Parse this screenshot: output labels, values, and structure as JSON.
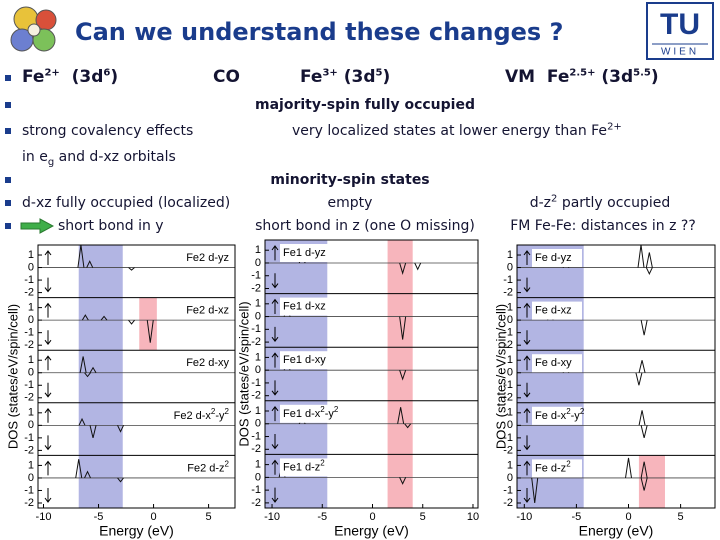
{
  "header": {
    "title": "Can we understand these changes ?",
    "logo": {
      "top": "TU",
      "bottom": "WIEN"
    }
  },
  "rows": [
    [
      [
        "Fe",
        {
          "sup": "2+"
        },
        "  (3d",
        {
          "sup": "6"
        },
        ")"
      ],
      [
        "CO"
      ],
      [
        "Fe",
        {
          "sup": "3+"
        },
        " (3d",
        {
          "sup": "5"
        },
        ")"
      ],
      [
        "VM  Fe",
        {
          "sup": "2.5+"
        },
        " (3d",
        {
          "sup": "5.5"
        },
        ")"
      ]
    ],
    [
      [
        "majority-spin fully occupied"
      ]
    ],
    [
      [
        "strong covalency effects"
      ],
      [
        "very localized states at lower energy than Fe",
        {
          "sup": "2+"
        }
      ]
    ],
    [
      [
        "in e",
        {
          "sub": "g"
        },
        " and d-xz orbitals"
      ]
    ],
    [
      [
        "minority-spin states"
      ]
    ],
    [
      [
        "d-xz fully occupied (localized)"
      ],
      [
        "empty"
      ],
      [
        "d-z",
        {
          "sup": "2"
        },
        " partly occupied"
      ]
    ],
    [
      [
        "short bond in y"
      ],
      [
        "short bond in z (one O missing)"
      ],
      [
        "FM Fe-Fe: distances in z ??"
      ]
    ]
  ],
  "plots": [
    {
      "ylabel": "DOS (states/eV/spin/cell)",
      "xlabel": "Energy (eV)",
      "xlim": [
        -10.5,
        7.4
      ],
      "xticks": [
        -10,
        -5,
        0,
        5
      ],
      "ylim": [
        -2.4,
        1.8
      ],
      "yticks": [
        1,
        0,
        -1,
        -2
      ],
      "panels": [
        {
          "label": [
            "Fe2 d-yz"
          ],
          "shade": [
            {
              "from": -6.8,
              "to": -2.8,
              "color": "#9fa3dc"
            }
          ],
          "peaks": [
            {
              "x": -6.6,
              "y": 1.8
            },
            {
              "x": -5.8,
              "y": 0.5
            },
            {
              "x": -2,
              "y": -0.2
            }
          ]
        },
        {
          "label": [
            "Fe2 d-xz"
          ],
          "shade": [
            {
              "from": -6.8,
              "to": -2.8,
              "color": "#9fa3dc"
            },
            {
              "from": -1.3,
              "to": 0.3,
              "color": "#f5a3ab"
            }
          ],
          "peaks": [
            {
              "x": -6.2,
              "y": 0.4
            },
            {
              "x": -4.5,
              "y": 0.3
            },
            {
              "x": -0.3,
              "y": -1.8
            },
            {
              "x": -2,
              "y": -0.3
            }
          ]
        },
        {
          "label": [
            "Fe2 d-xy"
          ],
          "shade": [
            {
              "from": -6.8,
              "to": -2.8,
              "color": "#9fa3dc"
            }
          ],
          "peaks": [
            {
              "x": -6.4,
              "y": 1.3
            },
            {
              "x": -5.5,
              "y": 0.4
            },
            {
              "x": -6,
              "y": -0.3
            }
          ]
        },
        {
          "label": [
            "Fe2 d-x",
            {
              "sup": "2"
            },
            "-y",
            {
              "sup": "2"
            }
          ],
          "shade": [
            {
              "from": -6.8,
              "to": -2.8,
              "color": "#9fa3dc"
            }
          ],
          "peaks": [
            {
              "x": -6.5,
              "y": 0.5
            },
            {
              "x": -5.5,
              "y": -1.0
            },
            {
              "x": -3,
              "y": -0.5
            }
          ]
        },
        {
          "label": [
            "Fe2 d-z",
            {
              "sup": "2"
            }
          ],
          "shade": [
            {
              "from": -6.8,
              "to": -2.8,
              "color": "#9fa3dc"
            }
          ],
          "peaks": [
            {
              "x": -6.8,
              "y": 1.5
            },
            {
              "x": -6,
              "y": 0.5
            },
            {
              "x": -3,
              "y": -0.3
            }
          ]
        }
      ]
    },
    {
      "ylabel": "DOS (states/eV/spin/cell)",
      "xlabel": "Energy (eV)",
      "xlim": [
        -10.7,
        10.5
      ],
      "xticks": [
        -10,
        -5,
        0,
        5,
        10
      ],
      "ylim": [
        -2.4,
        1.8
      ],
      "yticks": [
        1,
        0,
        -1,
        -2
      ],
      "panels": [
        {
          "label": [
            "Fe1 d-yz"
          ],
          "shade": [
            {
              "from": -10.7,
              "to": -4.5,
              "color": "#9fa3dc"
            },
            {
              "from": 1.5,
              "to": 4,
              "color": "#f5a3ab"
            }
          ],
          "peaks": [
            {
              "x": -7,
              "y": 0.5
            },
            {
              "x": 3,
              "y": -0.8
            },
            {
              "x": 4.5,
              "y": -0.5
            }
          ]
        },
        {
          "label": [
            "Fe1 d-xz"
          ],
          "shade": [
            {
              "from": -10.7,
              "to": -4.5,
              "color": "#9fa3dc"
            },
            {
              "from": 1.5,
              "to": 4,
              "color": "#f5a3ab"
            }
          ],
          "peaks": [
            {
              "x": -8.5,
              "y": 0.6
            },
            {
              "x": 3,
              "y": -1.8
            }
          ]
        },
        {
          "label": [
            "Fe1 d-xy"
          ],
          "shade": [
            {
              "from": -10.7,
              "to": -4.5,
              "color": "#9fa3dc"
            },
            {
              "from": 1.5,
              "to": 4,
              "color": "#f5a3ab"
            }
          ],
          "peaks": [
            {
              "x": -8.5,
              "y": 0.5
            },
            {
              "x": 3,
              "y": -0.7
            }
          ]
        },
        {
          "label": [
            "Fe1 d-x",
            {
              "sup": "2"
            },
            "-y",
            {
              "sup": "2"
            }
          ],
          "shade": [
            {
              "from": -10.7,
              "to": -4.5,
              "color": "#9fa3dc"
            },
            {
              "from": 1.5,
              "to": 4,
              "color": "#f5a3ab"
            }
          ],
          "peaks": [
            {
              "x": -7,
              "y": 0.4
            },
            {
              "x": 2.8,
              "y": 1.3
            },
            {
              "x": 3.5,
              "y": -0.3
            }
          ]
        },
        {
          "label": [
            "Fe1 d-z",
            {
              "sup": "2"
            }
          ],
          "shade": [
            {
              "from": -10.7,
              "to": -4.5,
              "color": "#9fa3dc"
            },
            {
              "from": 1.5,
              "to": 4,
              "color": "#f5a3ab"
            }
          ],
          "peaks": [
            {
              "x": -9,
              "y": 0.8
            },
            {
              "x": 3,
              "y": -0.5
            }
          ]
        }
      ]
    },
    {
      "ylabel": "DOS (states/eV/spin/cell)",
      "xlabel": "Energy (eV)",
      "xlim": [
        -10.7,
        8.3
      ],
      "xticks": [
        -10,
        -5,
        0,
        5
      ],
      "ylim": [
        -2.4,
        1.8
      ],
      "yticks": [
        1,
        0,
        -1,
        -2
      ],
      "panels": [
        {
          "label": [
            "Fe d-yz"
          ],
          "shade": [
            {
              "from": -10.7,
              "to": -4.3,
              "color": "#9fa3dc"
            }
          ],
          "peaks": [
            {
              "x": -6,
              "y": 0.3
            },
            {
              "x": 1.2,
              "y": 1.8
            },
            {
              "x": 2,
              "y": 1.2
            },
            {
              "x": 2,
              "y": -0.5
            }
          ]
        },
        {
          "label": [
            "Fe d-xz"
          ],
          "shade": [
            {
              "from": -10.7,
              "to": -4.3,
              "color": "#9fa3dc"
            }
          ],
          "peaks": [
            {
              "x": -7.5,
              "y": 0.3
            },
            {
              "x": 1.5,
              "y": -1.2
            }
          ]
        },
        {
          "label": [
            "Fe d-xy"
          ],
          "shade": [
            {
              "from": -10.7,
              "to": -4.3,
              "color": "#9fa3dc"
            }
          ],
          "peaks": [
            {
              "x": -6,
              "y": 0.3
            },
            {
              "x": 1.3,
              "y": 1.0
            },
            {
              "x": 1,
              "y": -1
            }
          ]
        },
        {
          "label": [
            "Fe d-x",
            {
              "sup": "2"
            },
            "-y",
            {
              "sup": "2"
            }
          ],
          "shade": [
            {
              "from": -10.7,
              "to": -4.3,
              "color": "#9fa3dc"
            }
          ],
          "peaks": [
            {
              "x": 1.3,
              "y": 1.2
            },
            {
              "x": 1.5,
              "y": -1
            }
          ]
        },
        {
          "label": [
            "Fe d-z",
            {
              "sup": "2"
            }
          ],
          "shade": [
            {
              "from": -10.7,
              "to": -4.3,
              "color": "#9fa3dc"
            },
            {
              "from": 1,
              "to": 3.5,
              "color": "#f5a3ab"
            }
          ],
          "peaks": [
            {
              "x": 0,
              "y": 1.6
            },
            {
              "x": 1.5,
              "y": 1.3
            },
            {
              "x": -9,
              "y": -2
            },
            {
              "x": 1.5,
              "y": -1.0
            }
          ]
        }
      ]
    }
  ]
}
